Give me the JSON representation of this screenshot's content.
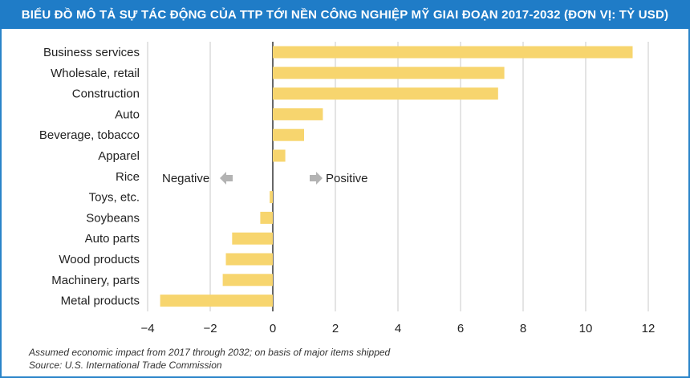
{
  "title": "BIỂU ĐỒ MÔ TẢ SỰ TÁC ĐỘNG CỦA TTP TỚI NỀN CÔNG NGHIỆP MỸ GIAI ĐOẠN 2017-2032 (ĐƠN VỊ: TỶ USD)",
  "colors": {
    "title_bg": "#1f7cc7",
    "bar": "#f7d56e",
    "grid": "#c8c8c8",
    "axis": "#333333",
    "arrow": "#b3b3b3"
  },
  "chart_data": {
    "type": "bar",
    "orientation": "horizontal",
    "categories": [
      "Business services",
      "Wholesale, retail",
      "Construction",
      "Auto",
      "Beverage, tobacco",
      "Apparel",
      "Rice",
      "Toys, etc.",
      "Soybeans",
      "Auto parts",
      "Wood products",
      "Machinery, parts",
      "Metal products"
    ],
    "values": [
      11.5,
      7.4,
      7.2,
      1.6,
      1.0,
      0.4,
      0.0,
      -0.1,
      -0.4,
      -1.3,
      -1.5,
      -1.6,
      -3.6
    ],
    "xlim": [
      -4,
      12
    ],
    "xticks": [
      -4,
      -2,
      0,
      2,
      4,
      6,
      8,
      10,
      12
    ],
    "xtick_labels": [
      "−4",
      "−2",
      "0",
      "2",
      "4",
      "6",
      "8",
      "10",
      "12"
    ],
    "grid": "vertical",
    "annotations": {
      "negative": "Negative",
      "positive": "Positive"
    }
  },
  "footnote": "Assumed economic impact from 2017 through 2032; on basis of major items shipped",
  "source": "Source: U.S. International Trade Commission"
}
